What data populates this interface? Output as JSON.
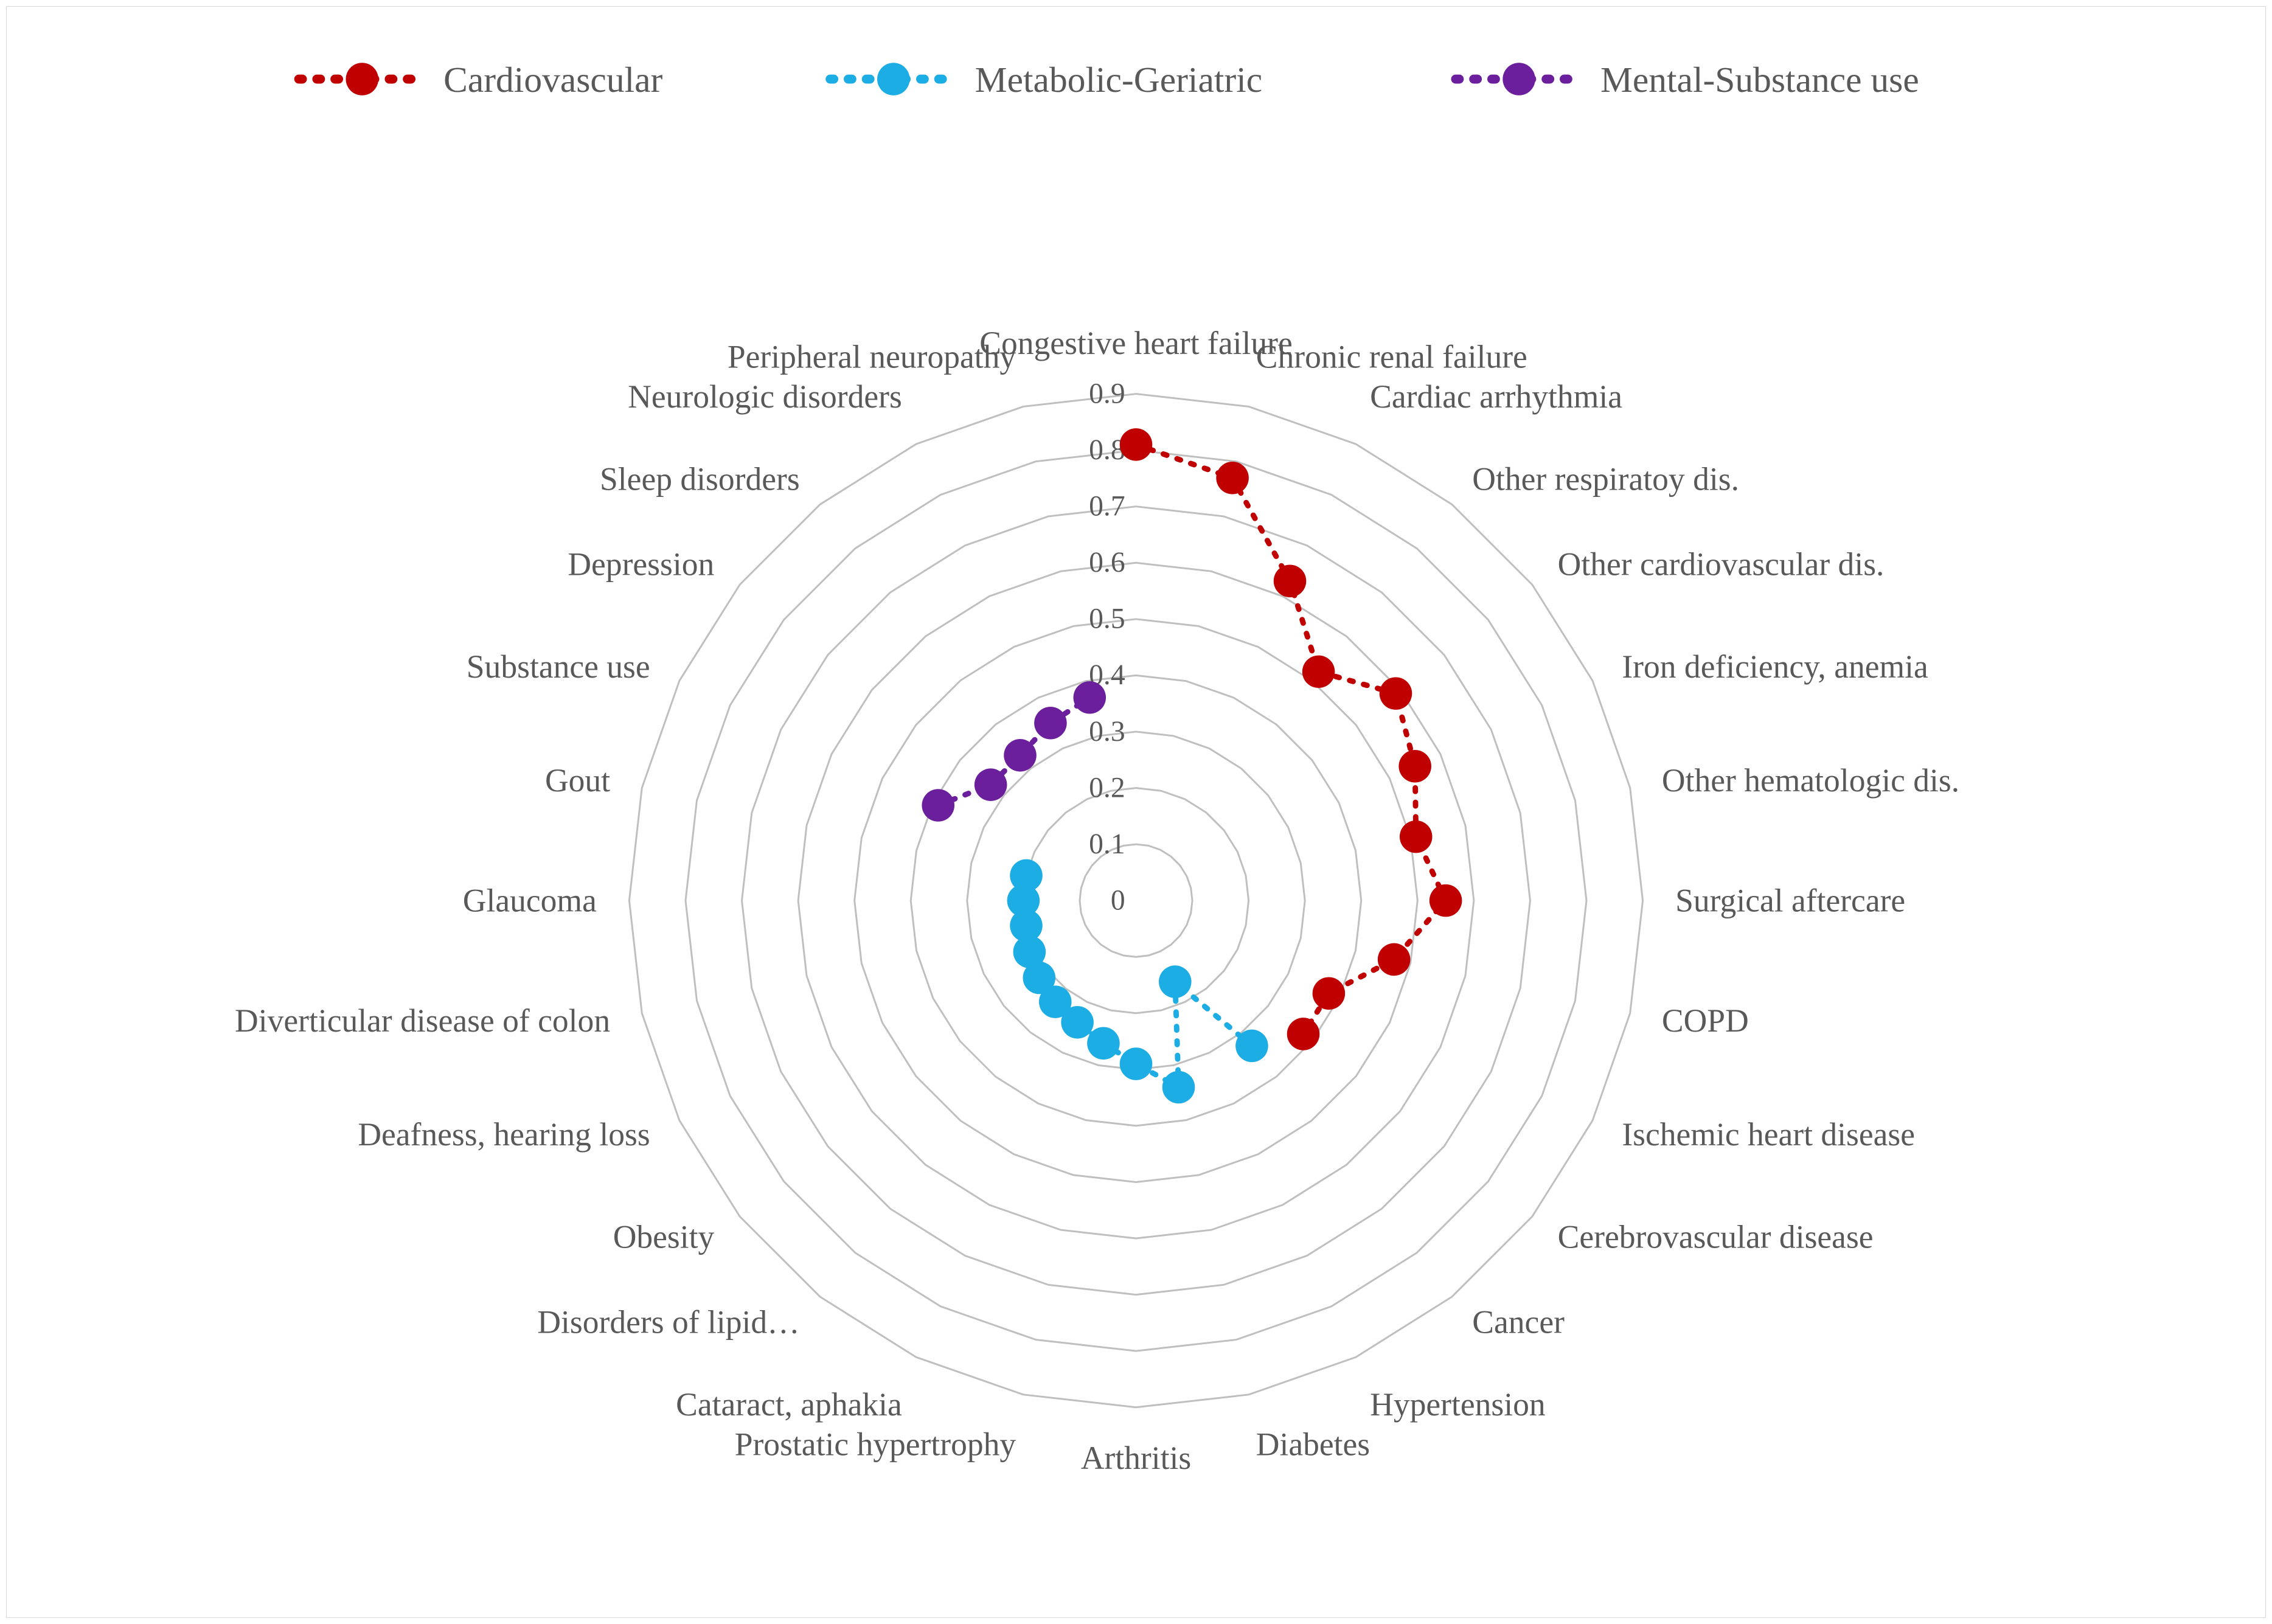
{
  "chart": {
    "type": "radar",
    "background_color": "#ffffff",
    "border_color": "#d9d9d9",
    "grid_color": "#bfbfbf",
    "grid_stroke_width": 1,
    "axis_label_color": "#595959",
    "axis_label_fontsize": 18,
    "tick_label_color": "#595959",
    "tick_label_fontsize": 16,
    "legend_fontsize": 20,
    "legend_label_color": "#595959",
    "r_min": 0,
    "r_max": 0.9,
    "r_ticks": [
      0,
      0.1,
      0.2,
      0.3,
      0.4,
      0.5,
      0.6,
      0.7,
      0.8,
      0.9
    ],
    "categories": [
      "Congestive heart failure",
      "Chronic renal failure",
      "Cardiac arrhythmia",
      "Other respiratoy dis.",
      "Other cardiovascular dis.",
      "Iron deficiency, anemia",
      "Other hematologic dis.",
      "Surgical aftercare",
      "COPD",
      "Ischemic heart disease",
      "Cerebrovascular disease",
      "Cancer",
      "Hypertension",
      "Diabetes",
      "Arthritis",
      "Prostatic hypertrophy",
      "Cataract, aphakia",
      "Disorders of lipid…",
      "Obesity",
      "Deafness, hearing loss",
      "Diverticular disease of colon",
      "Glaucoma",
      "Gout",
      "Substance use",
      "Depression",
      "Sleep disorders",
      "Neurologic disorders",
      "Peripheral neuropathy"
    ],
    "series": [
      {
        "name": "Cardiovascular",
        "color": "#c00000",
        "marker_size": 9,
        "line_width": 3,
        "line_dash": "2 6",
        "data": {
          "Congestive heart failure": 0.81,
          "Chronic renal failure": 0.77,
          "Cardiac arrhythmia": 0.63,
          "Other respiratoy dis.": 0.52,
          "Other cardiovascular dis.": 0.59,
          "Iron deficiency, anemia": 0.55,
          "Other hematologic dis.": 0.51,
          "Surgical aftercare": 0.55,
          "COPD": 0.47,
          "Ischemic heart disease": 0.38,
          "Cerebrovascular disease": 0.38
        }
      },
      {
        "name": "Metabolic-Geriatric",
        "color": "#1cade4",
        "marker_size": 9,
        "line_width": 3,
        "line_dash": "2 6",
        "data": {
          "Cancer": 0.33,
          "Hypertension": 0.16,
          "Diabetes": 0.34,
          "Arthritis": 0.29,
          "Prostatic hypertrophy": 0.26,
          "Cataract, aphakia": 0.24,
          "Disorders of lipid…": 0.23,
          "Obesity": 0.22,
          "Deafness, hearing loss": 0.21,
          "Diverticular disease of colon": 0.2,
          "Glaucoma": 0.2,
          "Gout": 0.2
        }
      },
      {
        "name": "Mental-Substance use",
        "color": "#6b1f9c",
        "marker_size": 9,
        "line_width": 3,
        "line_dash": "2 6",
        "data": {
          "Substance use": 0.39,
          "Depression": 0.33,
          "Sleep disorders": 0.33,
          "Neurologic disorders": 0.35,
          "Peripheral neuropathy": 0.37
        }
      }
    ]
  }
}
